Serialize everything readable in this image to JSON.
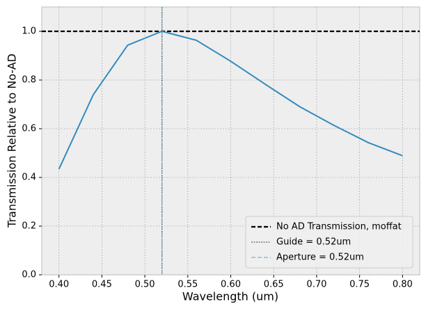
{
  "chart_data": {
    "type": "line",
    "xlabel": "Wavelength (um)",
    "ylabel": "Transmission Relative to No-AD",
    "x": [
      0.4,
      0.44,
      0.48,
      0.52,
      0.56,
      0.6,
      0.64,
      0.68,
      0.72,
      0.76,
      0.8
    ],
    "series": [
      {
        "name": null,
        "color": "#348abd",
        "values": [
          0.434,
          0.74,
          0.943,
          1.0,
          0.963,
          0.877,
          0.783,
          0.691,
          0.614,
          0.543,
          0.489
        ]
      }
    ],
    "hlines": [
      {
        "name": "No AD Transmission, moffat",
        "value": 1.0,
        "color": "#000000",
        "style": "dashed"
      }
    ],
    "vlines": [
      {
        "name": "Guide = 0.52um",
        "value": 0.52,
        "color": "#000000",
        "style": "dotted"
      },
      {
        "name": "Aperture = 0.52um",
        "value": 0.52,
        "color": "#348abd",
        "style": "dashed"
      }
    ],
    "xlim": [
      0.38,
      0.82
    ],
    "ylim": [
      0,
      1.1
    ],
    "xticks": [
      {
        "value": 0.4,
        "label": "0.40"
      },
      {
        "value": 0.45,
        "label": "0.45"
      },
      {
        "value": 0.5,
        "label": "0.50"
      },
      {
        "value": 0.55,
        "label": "0.55"
      },
      {
        "value": 0.6,
        "label": "0.60"
      },
      {
        "value": 0.65,
        "label": "0.65"
      },
      {
        "value": 0.7,
        "label": "0.70"
      },
      {
        "value": 0.75,
        "label": "0.75"
      },
      {
        "value": 0.8,
        "label": "0.80"
      }
    ],
    "yticks": [
      {
        "value": 0,
        "label": "0.0"
      },
      {
        "value": 0.2,
        "label": "0.2"
      },
      {
        "value": 0.4,
        "label": "0.4"
      },
      {
        "value": 0.6,
        "label": "0.6"
      },
      {
        "value": 0.8,
        "label": "0.8"
      },
      {
        "value": 1.0,
        "label": "1.0"
      }
    ],
    "grid": true,
    "legend": "lower right"
  }
}
